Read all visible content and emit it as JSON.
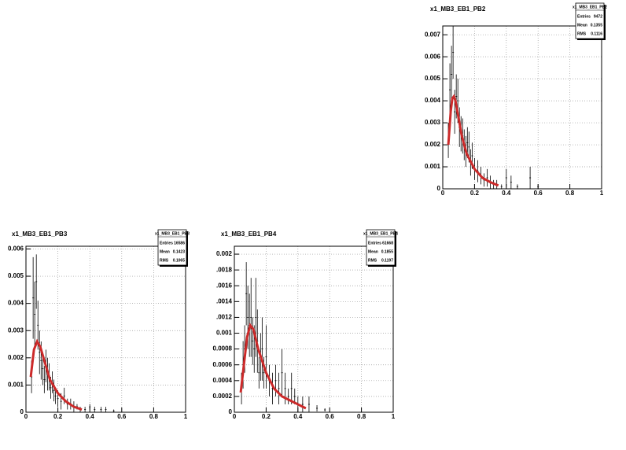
{
  "chart_data": [
    {
      "type": "errorbar",
      "title": "x1_MB3_EB1_PB2",
      "stats": {
        "title": "x1_MB3_EB1_PB2",
        "rows": [
          [
            "Entries",
            "9472"
          ],
          [
            "Mean",
            "0.1355"
          ],
          [
            "RMS",
            "0.1116"
          ]
        ]
      },
      "x": [
        0.035,
        0.045,
        0.055,
        0.065,
        0.075,
        0.085,
        0.095,
        0.105,
        0.115,
        0.125,
        0.135,
        0.145,
        0.155,
        0.165,
        0.175,
        0.185,
        0.2,
        0.22,
        0.24,
        0.26,
        0.28,
        0.3,
        0.32,
        0.34,
        0.37,
        0.4,
        0.43,
        0.47,
        0.55,
        0.6
      ],
      "values": [
        0.0022,
        0.0045,
        0.0052,
        0.0062,
        0.0035,
        0.0042,
        0.004,
        0.0028,
        0.0025,
        0.0024,
        0.002,
        0.0017,
        0.0021,
        0.0019,
        0.0012,
        0.0015,
        0.0009,
        0.0008,
        0.0006,
        0.0004,
        0.0005,
        0.0003,
        0.0002,
        0.0002,
        0.0001,
        0.0005,
        0.0003,
        0.0001,
        0.0005,
        0.0001
      ],
      "errors": [
        0.0008,
        0.0012,
        0.0013,
        0.0012,
        0.001,
        0.001,
        0.001,
        0.0009,
        0.0008,
        0.0008,
        0.0007,
        0.0007,
        0.0007,
        0.0007,
        0.0006,
        0.0006,
        0.0005,
        0.0005,
        0.0004,
        0.0003,
        0.0004,
        0.0003,
        0.0002,
        0.0002,
        0.0001,
        0.0004,
        0.0003,
        0.0001,
        0.0005,
        0.0001
      ],
      "fit": {
        "color": "#cc2a2a",
        "x": [
          0.035,
          0.05,
          0.06,
          0.07,
          0.08,
          0.1,
          0.12,
          0.15,
          0.2,
          0.25,
          0.3,
          0.35
        ],
        "values": [
          0.002,
          0.0035,
          0.0041,
          0.0042,
          0.004,
          0.0032,
          0.0024,
          0.0016,
          0.0009,
          0.0005,
          0.0003,
          0.00015
        ]
      },
      "xlim": [
        0,
        1
      ],
      "ylim": [
        0,
        0.0074
      ],
      "xticks": [
        0,
        0.2,
        0.4,
        0.6,
        0.8,
        1
      ],
      "yticks": [
        0,
        0.001,
        0.002,
        0.003,
        0.004,
        0.005,
        0.006,
        0.007
      ],
      "grid": true
    },
    {
      "type": "errorbar",
      "title": "x1_MB3_EB1_PB3",
      "stats": {
        "title": "x1_MB3_EB1_PB3",
        "rows": [
          [
            "Entries",
            "16586"
          ],
          [
            "Mean",
            "0.1423"
          ],
          [
            "RMS",
            "0.1065"
          ]
        ]
      },
      "x": [
        0.035,
        0.045,
        0.055,
        0.065,
        0.075,
        0.085,
        0.095,
        0.105,
        0.115,
        0.125,
        0.135,
        0.145,
        0.155,
        0.165,
        0.175,
        0.185,
        0.2,
        0.22,
        0.24,
        0.26,
        0.28,
        0.3,
        0.32,
        0.34,
        0.37,
        0.4,
        0.43,
        0.47,
        0.5,
        0.55
      ],
      "values": [
        0.0013,
        0.0042,
        0.0036,
        0.0048,
        0.0032,
        0.0022,
        0.0019,
        0.0016,
        0.0012,
        0.0017,
        0.0014,
        0.0013,
        0.0009,
        0.0011,
        0.0008,
        0.0006,
        0.0005,
        0.0004,
        0.0006,
        0.0003,
        0.0003,
        0.0002,
        0.0002,
        0.0001,
        0.0001,
        0.0002,
        0.0001,
        0.0001,
        0.0001,
        5e-05
      ],
      "errors": [
        0.0006,
        0.0015,
        0.0012,
        0.001,
        0.0009,
        0.0008,
        0.0007,
        0.0006,
        0.0005,
        0.0006,
        0.0006,
        0.0005,
        0.0004,
        0.0004,
        0.0004,
        0.0003,
        0.0003,
        0.0003,
        0.0003,
        0.0002,
        0.0002,
        0.0002,
        0.0001,
        0.0001,
        0.0001,
        0.0001,
        0.0001,
        0.0001,
        0.0001,
        5e-05
      ],
      "fit": {
        "color": "#cc2a2a",
        "x": [
          0.03,
          0.05,
          0.07,
          0.09,
          0.12,
          0.15,
          0.2,
          0.25,
          0.3,
          0.35
        ],
        "values": [
          0.0013,
          0.0023,
          0.0026,
          0.0024,
          0.0018,
          0.0012,
          0.0007,
          0.0004,
          0.0002,
          0.0001
        ]
      },
      "xlim": [
        0,
        1
      ],
      "ylim": [
        0,
        0.0061
      ],
      "xticks": [
        0,
        0.2,
        0.4,
        0.6,
        0.8,
        1
      ],
      "yticks": [
        0,
        0.001,
        0.002,
        0.003,
        0.004,
        0.005,
        0.006
      ],
      "grid": true
    },
    {
      "type": "errorbar",
      "title": "x1_MB3_EB1_PB4",
      "stats": {
        "title": "x1_MB3_EB1_PB4",
        "rows": [
          [
            "Entries",
            "61668"
          ],
          [
            "Mean",
            "0.1855"
          ],
          [
            "RMS",
            "0.1197"
          ]
        ]
      },
      "x": [
        0.045,
        0.055,
        0.065,
        0.075,
        0.085,
        0.095,
        0.105,
        0.115,
        0.125,
        0.135,
        0.145,
        0.155,
        0.165,
        0.175,
        0.185,
        0.2,
        0.22,
        0.24,
        0.26,
        0.28,
        0.3,
        0.32,
        0.34,
        0.36,
        0.38,
        0.4,
        0.43,
        0.47,
        0.52,
        0.57
      ],
      "values": [
        0.0003,
        0.0006,
        0.0008,
        0.0015,
        0.0012,
        0.0011,
        0.0012,
        0.0009,
        0.0008,
        0.0012,
        0.0009,
        0.0005,
        0.0007,
        0.0008,
        0.0005,
        0.0007,
        0.0004,
        0.0003,
        0.0004,
        0.0003,
        0.0005,
        0.0003,
        0.0002,
        0.0003,
        0.0002,
        0.0001,
        0.0001,
        0.0001,
        5e-05,
        3e-05
      ],
      "errors": [
        0.0002,
        0.0003,
        0.0003,
        0.0004,
        0.0004,
        0.0004,
        0.0005,
        0.0003,
        0.0003,
        0.0005,
        0.0004,
        0.0002,
        0.0003,
        0.0004,
        0.0002,
        0.0004,
        0.0002,
        0.0002,
        0.0002,
        0.0002,
        0.0003,
        0.0002,
        0.0001,
        0.0002,
        0.0001,
        0.0001,
        0.0001,
        0.0001,
        4e-05,
        2e-05
      ],
      "fit": {
        "color": "#cc2a2a",
        "x": [
          0.04,
          0.06,
          0.08,
          0.1,
          0.12,
          0.15,
          0.2,
          0.25,
          0.3,
          0.4,
          0.45
        ],
        "values": [
          0.00025,
          0.0006,
          0.00095,
          0.0011,
          0.00105,
          0.0008,
          0.0005,
          0.0003,
          0.0002,
          0.0001,
          5e-05
        ]
      },
      "xlim": [
        0,
        1
      ],
      "ylim": [
        0,
        0.0021
      ],
      "xticks": [
        0,
        0.2,
        0.4,
        0.6,
        0.8,
        1
      ],
      "yticks": [
        0,
        0.0002,
        0.0004,
        0.0006,
        0.0008,
        0.001,
        {
          "value": 0.0012,
          "label": ".0012"
        },
        {
          "value": 0.0014,
          "label": ".0014"
        },
        {
          "value": 0.0016,
          "label": ".0016"
        },
        {
          "value": 0.0018,
          "label": ".0018"
        },
        0.002
      ],
      "grid": true
    }
  ]
}
